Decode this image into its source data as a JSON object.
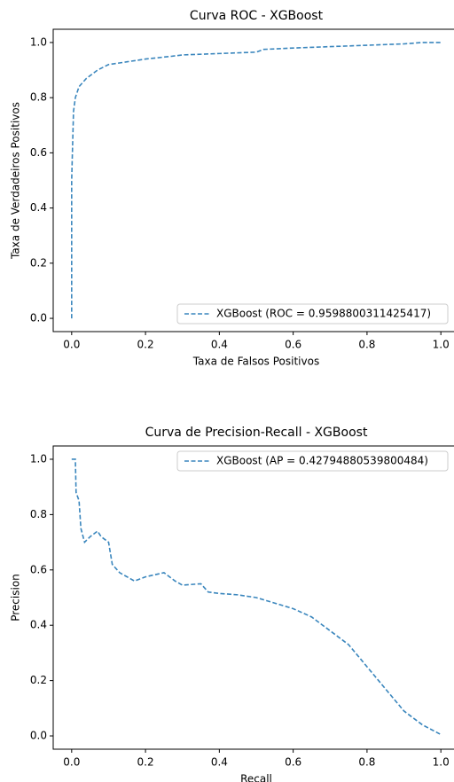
{
  "chart_data": [
    {
      "type": "line",
      "title": "Curva ROC  - XGBoost",
      "xlabel": "Taxa de Falsos Positivos",
      "ylabel": "Taxa de Verdadeiros Positivos",
      "x": [
        0,
        0,
        0.005,
        0.01,
        0.02,
        0.04,
        0.07,
        0.1,
        0.15,
        0.2,
        0.27,
        0.3,
        0.4,
        0.5,
        0.52,
        0.6,
        0.7,
        0.8,
        0.9,
        0.95,
        1
      ],
      "series": [
        {
          "name": "XGBoost (ROC = 0.9598800311425417)",
          "color": "#3a86bd",
          "values": [
            0,
            0.5,
            0.75,
            0.8,
            0.84,
            0.87,
            0.9,
            0.92,
            0.93,
            0.94,
            0.95,
            0.955,
            0.96,
            0.965,
            0.975,
            0.98,
            0.985,
            0.99,
            0.995,
            1,
            1
          ]
        }
      ],
      "xlim": [
        -0.05,
        1.05
      ],
      "ylim": [
        -0.048,
        1.048
      ],
      "xticks": [
        {
          "value": 0,
          "label": "0.0"
        },
        0.2,
        0.4,
        0.6,
        0.8,
        {
          "value": 1,
          "label": "1.0"
        }
      ],
      "yticks": [
        {
          "value": 0,
          "label": "0.0"
        },
        0.2,
        0.4,
        0.6,
        0.8,
        {
          "value": 1,
          "label": "1.0"
        }
      ],
      "legend": "lower right"
    },
    {
      "type": "line",
      "title": "Curva de Precision-Recall - XGBoost",
      "xlabel": "Recall",
      "ylabel": "Precision",
      "x": [
        0,
        0.01,
        0.012,
        0.02,
        0.025,
        0.035,
        0.05,
        0.07,
        0.08,
        0.1,
        0.11,
        0.13,
        0.17,
        0.2,
        0.25,
        0.28,
        0.3,
        0.35,
        0.37,
        0.4,
        0.45,
        0.5,
        0.55,
        0.6,
        0.65,
        0.7,
        0.75,
        0.8,
        0.85,
        0.9,
        0.95,
        1
      ],
      "series": [
        {
          "name": "XGBoost (AP = 0.42794880539800484)",
          "color": "#3a86bd",
          "values": [
            1,
            1,
            0.88,
            0.85,
            0.75,
            0.7,
            0.72,
            0.74,
            0.72,
            0.7,
            0.62,
            0.59,
            0.56,
            0.575,
            0.59,
            0.56,
            0.545,
            0.55,
            0.52,
            0.515,
            0.51,
            0.5,
            0.48,
            0.46,
            0.43,
            0.38,
            0.33,
            0.25,
            0.17,
            0.09,
            0.04,
            0.005
          ]
        }
      ],
      "xlim": [
        -0.05,
        1.05
      ],
      "ylim": [
        -0.048,
        1.048
      ],
      "xticks": [
        {
          "value": 0,
          "label": "0.0"
        },
        0.2,
        0.4,
        0.6,
        0.8,
        {
          "value": 1,
          "label": "1.0"
        }
      ],
      "yticks": [
        {
          "value": 0,
          "label": "0.0"
        },
        0.2,
        0.4,
        0.6,
        0.8,
        {
          "value": 1,
          "label": "1.0"
        }
      ],
      "legend": "upper right"
    }
  ]
}
